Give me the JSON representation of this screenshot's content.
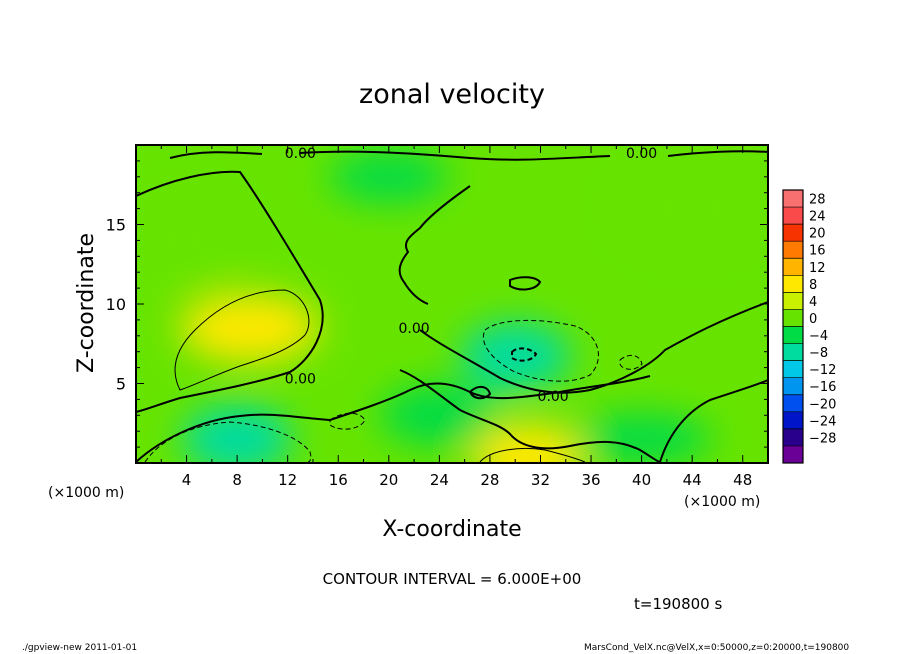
{
  "chart_data": {
    "type": "heatmap",
    "title": "zonal velocity",
    "xlabel": "X-coordinate",
    "ylabel": "Z-coordinate",
    "x_unit_label": "(×1000 m)",
    "y_unit_label": "(×1000 m)",
    "xlim": [
      0,
      50
    ],
    "ylim": [
      0,
      20
    ],
    "x_ticks": [
      4,
      8,
      12,
      16,
      20,
      24,
      28,
      32,
      36,
      40,
      44,
      48
    ],
    "y_ticks": [
      5,
      10,
      15
    ],
    "grid": false,
    "contour_interval_text": "CONTOUR INTERVAL = 6.000E+00",
    "time_text": "t=190800 s",
    "contour_labels": [
      {
        "text": "0.00",
        "x": 13,
        "z": 19.5
      },
      {
        "text": "0.00",
        "x": 40,
        "z": 19.5
      },
      {
        "text": "0.00",
        "x": 13,
        "z": 5.3
      },
      {
        "text": "0.00",
        "x": 33,
        "z": 4.2
      },
      {
        "text": "0.00",
        "x": 22,
        "z": 8.5
      }
    ],
    "colorbar": {
      "placement": "right",
      "levels": [
        28,
        24,
        20,
        16,
        12,
        8,
        4,
        0,
        -4,
        -8,
        -12,
        -16,
        -20,
        -24,
        -28
      ],
      "colors": [
        "#f87070",
        "#fa4a4a",
        "#f73400",
        "#ff7a00",
        "#ffb400",
        "#ffe800",
        "#c8f000",
        "#66e400",
        "#00dc46",
        "#00dca0",
        "#00c8e6",
        "#0096f0",
        "#0050f0",
        "#0014c8",
        "#28008c",
        "#6a0096"
      ]
    },
    "field_features": [
      {
        "label": "positive max",
        "x": 9,
        "z": 8.5,
        "value": 10
      },
      {
        "label": "negative min",
        "x": 30,
        "z": 6.7,
        "value": -8
      },
      {
        "label": "negative min",
        "x": 8,
        "z": 1.5,
        "value": -7
      },
      {
        "label": "positive max",
        "x": 31,
        "z": 0.3,
        "value": 8
      }
    ]
  },
  "footer": {
    "left": "./gpview-new  2011-01-01",
    "right": "MarsCond_VelX.nc@VelX,x=0:50000,z=0:20000,t=190800"
  }
}
